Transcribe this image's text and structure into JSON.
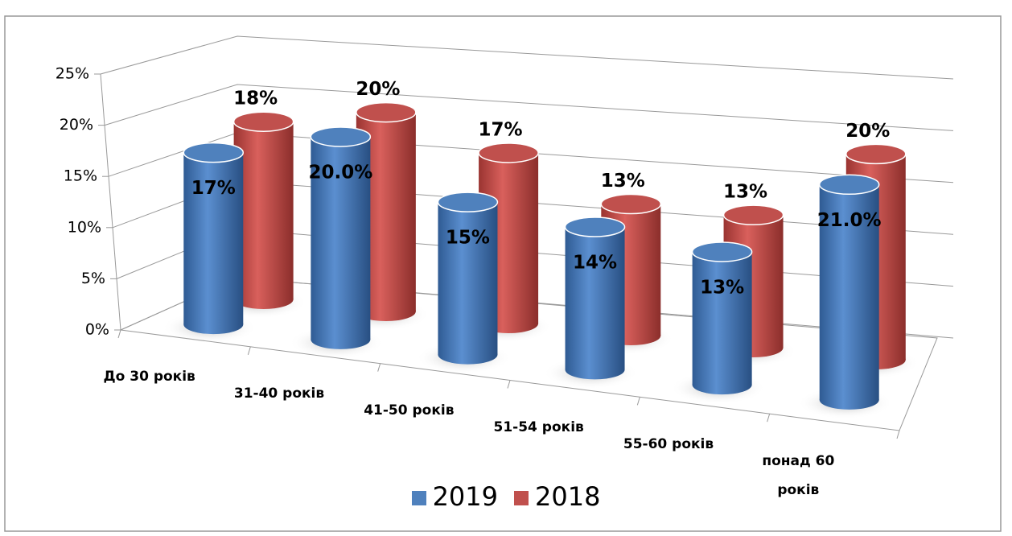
{
  "chart_data": {
    "type": "bar3d",
    "categories": [
      "До 30 років",
      "31-40 років",
      "41-50 років",
      "51-54 років",
      "55-60 років",
      "понад 60 років"
    ],
    "series": [
      {
        "name": "2019",
        "color": "#4f81bd",
        "values": [
          17,
          20,
          15,
          14,
          13,
          21
        ],
        "value_labels": [
          "17%",
          "20.0%",
          "15%",
          "14%",
          "13%",
          "21.0%"
        ]
      },
      {
        "name": "2018",
        "color": "#c0504d",
        "values": [
          18,
          20,
          17,
          13,
          13,
          20
        ],
        "value_labels": [
          "18%",
          "20%",
          "17%",
          "13%",
          "13%",
          "20%"
        ]
      }
    ],
    "ylim": [
      0,
      25
    ],
    "yticks": [
      {
        "value": 0,
        "label": "0%"
      },
      {
        "value": 5,
        "label": "5%"
      },
      {
        "value": 10,
        "label": "10%"
      },
      {
        "value": 15,
        "label": "15%"
      },
      {
        "value": 20,
        "label": "20%"
      },
      {
        "value": 25,
        "label": "25%"
      }
    ],
    "grid": true,
    "legend": "bottom"
  }
}
